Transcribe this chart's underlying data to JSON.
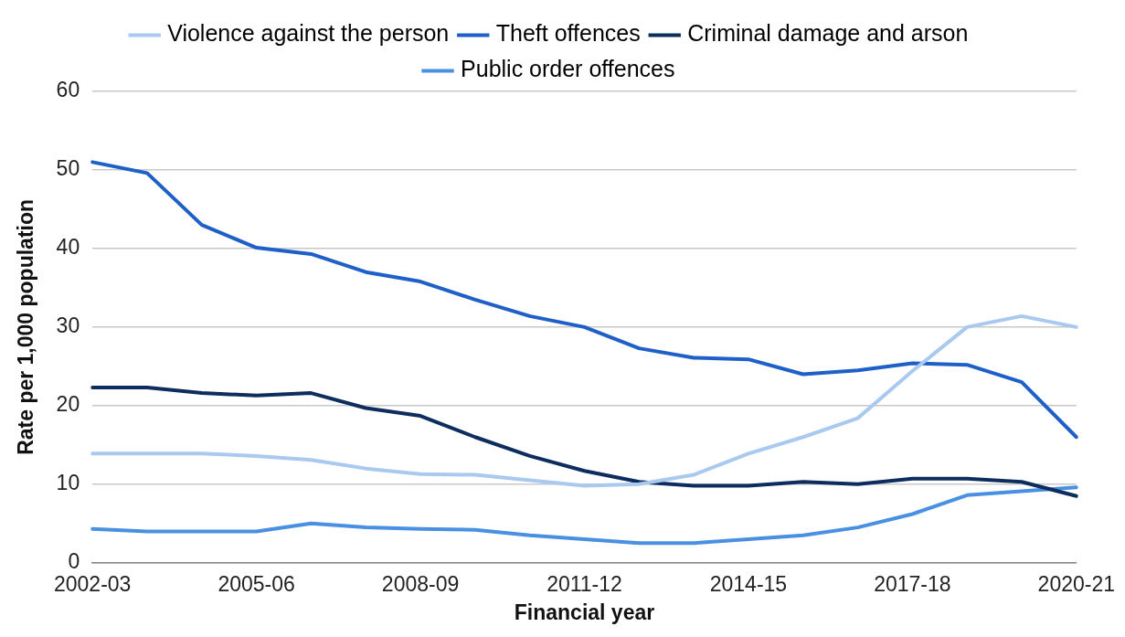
{
  "chart_data": {
    "type": "line",
    "xlabel": "Financial year",
    "ylabel": "Rate per 1,000 population",
    "categories": [
      "2002-03",
      null,
      null,
      "2005-06",
      null,
      null,
      "2008-09",
      null,
      null,
      "2011-12",
      null,
      null,
      "2014-15",
      null,
      null,
      "2017-18",
      null,
      null,
      "2020-21"
    ],
    "series": [
      {
        "name": "Violence against the person",
        "color": "#a9c9f1",
        "values": [
          13.9,
          13.9,
          13.9,
          13.6,
          13.1,
          12,
          11.3,
          11.2,
          10.5,
          9.8,
          10,
          11.2,
          13.9,
          16,
          18.4,
          24.4,
          30,
          31.4,
          30
        ]
      },
      {
        "name": "Theft offences",
        "color": "#1f5fc8",
        "values": [
          51,
          49.6,
          43,
          40.1,
          39.3,
          37,
          35.8,
          33.5,
          31.4,
          30,
          27.3,
          26.1,
          25.9,
          24,
          24.5,
          25.4,
          25.2,
          23,
          16
        ]
      },
      {
        "name": "Criminal damage and arson",
        "color": "#0d2d5e",
        "values": [
          22.3,
          22.3,
          21.6,
          21.3,
          21.6,
          19.7,
          18.7,
          16,
          13.6,
          11.7,
          10.3,
          9.8,
          9.8,
          10.3,
          10,
          10.7,
          10.7,
          10.3,
          8.5
        ]
      },
      {
        "name": "Public order offences",
        "color": "#4a90e2",
        "values": [
          4.3,
          4,
          4,
          4,
          5,
          4.5,
          4.3,
          4.2,
          3.5,
          3,
          2.5,
          2.5,
          3,
          3.5,
          4.5,
          6.2,
          8.6,
          9.1,
          9.6
        ]
      }
    ],
    "ylim": [
      0,
      60
    ],
    "yticks": [
      0,
      10,
      20,
      30,
      40,
      50,
      60
    ],
    "grid": "y",
    "legend": "top",
    "marker": "none",
    "line_style": "solid"
  }
}
